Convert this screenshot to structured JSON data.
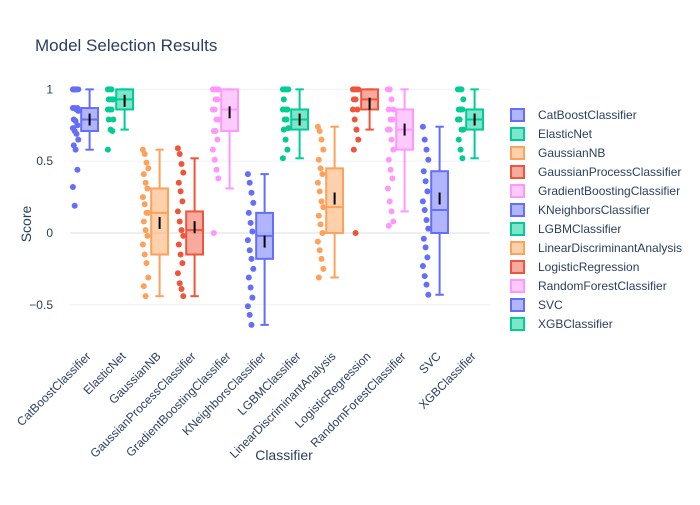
{
  "chart_data": {
    "type": "box",
    "title": "Model Selection Results",
    "xlabel": "Classifier",
    "ylabel": "Score",
    "ylim": [
      -0.78,
      1.1
    ],
    "yticks": [
      {
        "value": 1,
        "label": "1"
      },
      {
        "value": 0.5,
        "label": "0.5"
      },
      {
        "value": 0,
        "label": "0"
      },
      {
        "value": -0.5,
        "label": "−0.5"
      }
    ],
    "grid": true,
    "legend_position": "right",
    "series": [
      {
        "name": "CatBoostClassifier",
        "color": "#636efa",
        "q1": 0.71,
        "median": 0.79,
        "q3": 0.87,
        "lower_fence": 0.58,
        "upper_fence": 1.0,
        "mean": 0.79,
        "points": [
          1.0,
          1.0,
          1.0,
          1.0,
          1.0,
          1.0,
          0.87,
          0.87,
          0.87,
          0.86,
          0.85,
          0.79,
          0.78,
          0.75,
          0.73,
          0.71,
          0.69,
          0.65,
          0.61,
          0.58,
          0.44,
          0.32,
          0.19
        ]
      },
      {
        "name": "ElasticNet",
        "color": "#00cc96",
        "q1": 0.86,
        "median": 0.93,
        "q3": 1.0,
        "lower_fence": 0.72,
        "upper_fence": 1.0,
        "mean": 0.92,
        "points": [
          1.0,
          1.0,
          1.0,
          0.93,
          0.93,
          0.93,
          0.93,
          0.86,
          0.86,
          0.86,
          0.79,
          0.79,
          0.72,
          0.71,
          0.58
        ]
      },
      {
        "name": "GaussianNB",
        "color": "#ffa15a",
        "q1": -0.15,
        "median": 0.14,
        "q3": 0.31,
        "lower_fence": -0.44,
        "upper_fence": 0.58,
        "mean": 0.07,
        "points": [
          0.58,
          0.55,
          0.49,
          0.45,
          0.41,
          0.35,
          0.31,
          0.25,
          0.2,
          0.14,
          0.14,
          0.08,
          0.02,
          -0.02,
          -0.08,
          -0.15,
          -0.21,
          -0.31,
          -0.37,
          -0.44
        ]
      },
      {
        "name": "GaussianProcessClassifier",
        "color": "#ef553b",
        "q1": -0.15,
        "median": 0.02,
        "q3": 0.15,
        "lower_fence": -0.44,
        "upper_fence": 0.52,
        "mean": 0.04,
        "points": [
          0.59,
          0.55,
          0.48,
          0.42,
          0.35,
          0.29,
          0.22,
          0.15,
          0.08,
          0.02,
          -0.02,
          -0.08,
          -0.15,
          -0.21,
          -0.28,
          -0.35,
          -0.39,
          -0.44
        ]
      },
      {
        "name": "GradientBoostingClassifier",
        "color": "#ff97ff",
        "q1": 0.71,
        "median": 0.86,
        "q3": 1.0,
        "lower_fence": 0.31,
        "upper_fence": 1.0,
        "mean": 0.84,
        "points": [
          1.0,
          1.0,
          1.0,
          1.0,
          1.0,
          0.93,
          0.93,
          0.86,
          0.86,
          0.79,
          0.79,
          0.71,
          0.71,
          0.65,
          0.58,
          0.51,
          0.44,
          0.38,
          0.0
        ]
      },
      {
        "name": "KNeighborsClassifier",
        "color": "#636efa",
        "q1": -0.18,
        "median": -0.02,
        "q3": 0.14,
        "lower_fence": -0.64,
        "upper_fence": 0.41,
        "mean": -0.06,
        "points": [
          0.41,
          0.35,
          0.28,
          0.21,
          0.14,
          0.07,
          0.01,
          -0.05,
          -0.12,
          -0.18,
          -0.25,
          -0.31,
          -0.38,
          -0.45,
          -0.51,
          -0.57,
          -0.64
        ]
      },
      {
        "name": "LGBMClassifier",
        "color": "#00cc96",
        "q1": 0.72,
        "median": 0.79,
        "q3": 0.86,
        "lower_fence": 0.52,
        "upper_fence": 1.0,
        "mean": 0.79,
        "points": [
          1.0,
          1.0,
          1.0,
          1.0,
          0.93,
          0.86,
          0.86,
          0.86,
          0.79,
          0.79,
          0.73,
          0.72,
          0.65,
          0.58,
          0.52
        ]
      },
      {
        "name": "LinearDiscriminantAnalysis",
        "color": "#ffa15a",
        "q1": 0.0,
        "median": 0.18,
        "q3": 0.45,
        "lower_fence": -0.31,
        "upper_fence": 0.74,
        "mean": 0.24,
        "points": [
          0.74,
          0.71,
          0.65,
          0.58,
          0.51,
          0.45,
          0.41,
          0.35,
          0.29,
          0.22,
          0.18,
          0.12,
          0.06,
          0.0,
          -0.06,
          -0.12,
          -0.18,
          -0.25,
          -0.31
        ]
      },
      {
        "name": "LogisticRegression",
        "color": "#ef553b",
        "q1": 0.86,
        "median": 0.93,
        "q3": 1.0,
        "lower_fence": 0.72,
        "upper_fence": 1.0,
        "mean": 0.9,
        "points": [
          1.0,
          1.0,
          1.0,
          1.0,
          0.93,
          0.93,
          0.86,
          0.86,
          0.79,
          0.72,
          0.65,
          0.58,
          0.0
        ]
      },
      {
        "name": "RandomForestClassifier",
        "color": "#ff97ff",
        "q1": 0.58,
        "median": 0.72,
        "q3": 0.86,
        "lower_fence": 0.15,
        "upper_fence": 1.0,
        "mean": 0.72,
        "points": [
          1.0,
          1.0,
          0.93,
          0.86,
          0.86,
          0.79,
          0.79,
          0.72,
          0.72,
          0.65,
          0.58,
          0.51,
          0.44,
          0.38,
          0.31,
          0.22,
          0.15,
          0.08,
          0.05
        ]
      },
      {
        "name": "SVC",
        "color": "#636efa",
        "q1": 0.0,
        "median": 0.16,
        "q3": 0.43,
        "lower_fence": -0.43,
        "upper_fence": 0.74,
        "mean": 0.24,
        "points": [
          0.74,
          0.65,
          0.58,
          0.51,
          0.43,
          0.36,
          0.29,
          0.22,
          0.16,
          0.09,
          0.03,
          -0.04,
          -0.1,
          -0.17,
          -0.23,
          -0.3,
          -0.36,
          -0.43
        ]
      },
      {
        "name": "XGBClassifier",
        "color": "#00cc96",
        "q1": 0.72,
        "median": 0.79,
        "q3": 0.86,
        "lower_fence": 0.52,
        "upper_fence": 1.0,
        "mean": 0.79,
        "points": [
          1.0,
          1.0,
          1.0,
          0.93,
          0.86,
          0.86,
          0.86,
          0.79,
          0.79,
          0.72,
          0.72,
          0.65,
          0.58,
          0.52
        ]
      }
    ]
  }
}
